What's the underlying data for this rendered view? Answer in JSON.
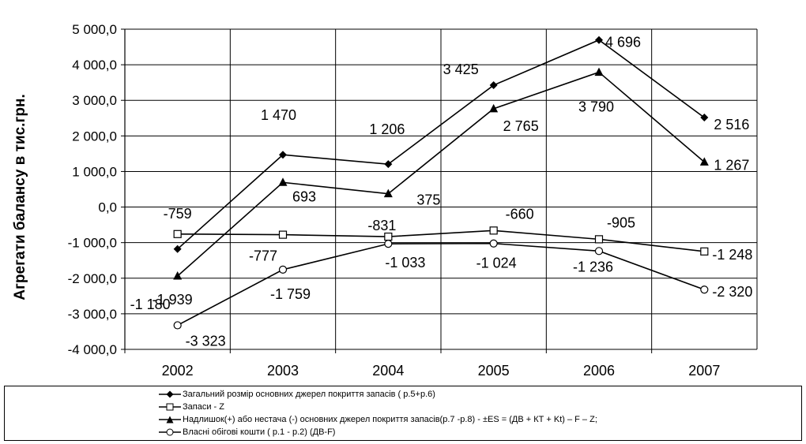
{
  "chart_data": {
    "type": "line",
    "categories": [
      "2002",
      "2003",
      "2004",
      "2005",
      "2006",
      "2007"
    ],
    "ylabel": "Агрегати балансу в тис.грн.",
    "ylim": [
      -4000,
      5000
    ],
    "yticks": [
      5000,
      4000,
      3000,
      2000,
      1000,
      0,
      -1000,
      -2000,
      -3000,
      -4000
    ],
    "ytick_labels": [
      "5 000,0",
      "4 000,0",
      "3 000,0",
      "2 000,0",
      "1 000,0",
      "0,0",
      "-1 000,0",
      "-2 000,0",
      "-3 000,0",
      "-4 000,0"
    ],
    "grid": true,
    "legend_position": "bottom",
    "series": [
      {
        "name": "Загальний розмір основних джерел покриття запасів ( р.5+р.6)",
        "marker": "filled-diamond",
        "values": [
          -1180,
          1470,
          1206,
          3425,
          4696,
          2516
        ],
        "labels": [
          "-1 180",
          "1 470",
          "1 206",
          "3 425",
          "4 696",
          "2 516"
        ]
      },
      {
        "name": "Запаси - Z",
        "marker": "open-square",
        "values": [
          -759,
          -777,
          -831,
          -660,
          -905,
          -1248
        ],
        "labels": [
          "-759",
          "-777",
          "-831",
          "-660",
          "-905",
          "-1 248"
        ]
      },
      {
        "name": "Надлишок(+) або нестача (-) основних джерел покриття запасів(р.7 -р.8) -      ±ES = (ДВ + КТ + Kt)  – F  –  Z;",
        "marker": "filled-triangle",
        "values": [
          -1939,
          693,
          375,
          2765,
          3790,
          1267
        ],
        "labels": [
          "-1 939",
          "693",
          "375",
          "2 765",
          "3 790",
          "1 267"
        ]
      },
      {
        "name": "Власні обігові кошти ( р.1 - р.2) (ДВ-F)",
        "marker": "open-circle",
        "values": [
          -3323,
          -1759,
          -1033,
          -1024,
          -1236,
          -2320
        ],
        "labels": [
          "-3 323",
          "-1 759",
          "-1 033",
          "-1 024",
          "-1 236",
          "-2 320"
        ]
      }
    ]
  },
  "colors": {
    "line": "#000000",
    "grid": "#000000",
    "background": "#ffffff"
  }
}
